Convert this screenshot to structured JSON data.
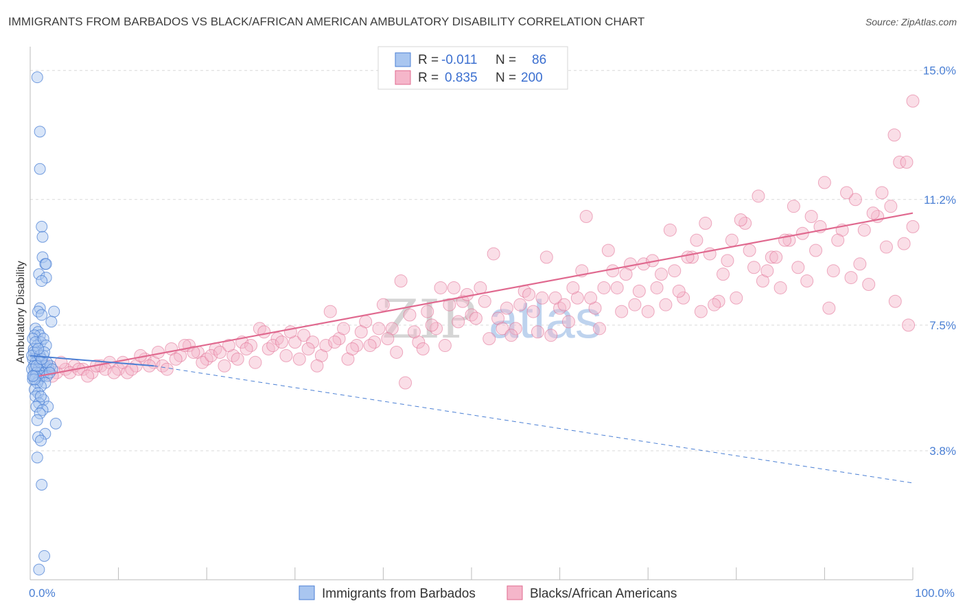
{
  "title": "IMMIGRANTS FROM BARBADOS VS BLACK/AFRICAN AMERICAN AMBULATORY DISABILITY CORRELATION CHART",
  "source": "Source: ZipAtlas.com",
  "watermark": {
    "zip": "ZIP",
    "atlas": "atlas"
  },
  "colors": {
    "blue": "#4a7fd4",
    "blue_fill": "#a9c6f0",
    "pink": "#e0698f",
    "pink_fill": "#f5b6ca",
    "grid": "#d9d9d9",
    "axis": "#bbbbbb",
    "tick_text": "#4a7fd4"
  },
  "chart_data": {
    "type": "scatter",
    "xlabel": "",
    "ylabel": "Ambulatory Disability",
    "xlim": [
      0,
      100
    ],
    "ylim": [
      0,
      15.5
    ],
    "x_tick_labels": [
      {
        "value": 0,
        "label": "0.0%"
      },
      {
        "value": 100,
        "label": "100.0%"
      }
    ],
    "y_tick_labels": [
      {
        "value": 3.8,
        "label": "3.8%"
      },
      {
        "value": 7.5,
        "label": "7.5%"
      },
      {
        "value": 11.2,
        "label": "11.2%"
      },
      {
        "value": 15.0,
        "label": "15.0%"
      }
    ],
    "grid": true,
    "legend_position": "top-center",
    "legend": [
      {
        "r_label": "R =",
        "r": "-0.011",
        "n_label": "N =",
        "n": "86"
      },
      {
        "r_label": "R =",
        "r": "0.835",
        "n_label": "N =",
        "n": "200"
      }
    ],
    "series": [
      {
        "name": "Immigrants from Barbados",
        "color": "#4a7fd4",
        "trend": {
          "x": [
            0,
            14
          ],
          "y": [
            6.6,
            6.3
          ],
          "extended_to": {
            "x": 100,
            "y": 2.85
          }
        },
        "points": [
          [
            0.8,
            14.8
          ],
          [
            1.1,
            13.2
          ],
          [
            1.1,
            12.1
          ],
          [
            1.3,
            10.4
          ],
          [
            1.4,
            10.1
          ],
          [
            1.4,
            9.5
          ],
          [
            1.7,
            9.3
          ],
          [
            1.8,
            9.3
          ],
          [
            1.0,
            9.0
          ],
          [
            1.8,
            8.9
          ],
          [
            1.3,
            8.8
          ],
          [
            2.7,
            7.9
          ],
          [
            1.1,
            8.0
          ],
          [
            0.9,
            7.9
          ],
          [
            1.3,
            7.8
          ],
          [
            2.4,
            7.6
          ],
          [
            0.6,
            7.4
          ],
          [
            0.9,
            7.3
          ],
          [
            1.1,
            7.2
          ],
          [
            0.5,
            7.2
          ],
          [
            0.3,
            7.1
          ],
          [
            1.2,
            7.0
          ],
          [
            0.8,
            6.9
          ],
          [
            0.4,
            6.8
          ],
          [
            0.7,
            6.7
          ],
          [
            1.5,
            6.6
          ],
          [
            0.9,
            6.5
          ],
          [
            0.3,
            6.5
          ],
          [
            1.3,
            6.4
          ],
          [
            0.6,
            6.4
          ],
          [
            1.8,
            6.3
          ],
          [
            0.4,
            6.3
          ],
          [
            1.0,
            6.3
          ],
          [
            1.6,
            6.3
          ],
          [
            2.1,
            6.2
          ],
          [
            0.5,
            6.2
          ],
          [
            1.3,
            6.2
          ],
          [
            0.9,
            6.2
          ],
          [
            0.2,
            6.2
          ],
          [
            1.6,
            6.1
          ],
          [
            2.3,
            6.3
          ],
          [
            1.1,
            6.1
          ],
          [
            0.7,
            6.1
          ],
          [
            0.4,
            6.0
          ],
          [
            1.4,
            6.0
          ],
          [
            1.9,
            6.0
          ],
          [
            0.6,
            6.0
          ],
          [
            1.0,
            5.9
          ],
          [
            0.3,
            5.9
          ],
          [
            1.7,
            5.8
          ],
          [
            0.8,
            5.8
          ],
          [
            1.2,
            5.7
          ],
          [
            0.5,
            5.6
          ],
          [
            0.9,
            5.5
          ],
          [
            0.6,
            5.4
          ],
          [
            1.5,
            5.3
          ],
          [
            1.0,
            5.2
          ],
          [
            0.7,
            5.1
          ],
          [
            2.0,
            5.1
          ],
          [
            1.4,
            5.0
          ],
          [
            1.1,
            4.9
          ],
          [
            0.8,
            4.7
          ],
          [
            2.9,
            4.6
          ],
          [
            1.7,
            4.3
          ],
          [
            0.9,
            4.2
          ],
          [
            1.2,
            4.1
          ],
          [
            0.8,
            3.6
          ],
          [
            1.3,
            2.8
          ],
          [
            1.6,
            0.7
          ],
          [
            1.0,
            0.3
          ],
          [
            0.4,
            6.7
          ],
          [
            1.9,
            6.4
          ],
          [
            0.6,
            7.0
          ],
          [
            1.5,
            7.1
          ],
          [
            0.2,
            6.6
          ],
          [
            2.5,
            6.2
          ],
          [
            1.1,
            6.6
          ],
          [
            0.7,
            6.3
          ],
          [
            1.8,
            6.9
          ],
          [
            0.5,
            5.9
          ],
          [
            1.3,
            6.5
          ],
          [
            0.3,
            6.0
          ],
          [
            2.2,
            6.1
          ],
          [
            1.6,
            6.7
          ],
          [
            0.9,
            6.8
          ],
          [
            1.2,
            5.4
          ]
        ]
      },
      {
        "name": "Blacks/African Americans",
        "color": "#e0698f",
        "trend": {
          "x": [
            1,
            100
          ],
          "y": [
            6.0,
            10.8
          ]
        },
        "points": [
          [
            2.0,
            6.3
          ],
          [
            3.0,
            6.1
          ],
          [
            4.0,
            6.2
          ],
          [
            5.0,
            6.3
          ],
          [
            6.0,
            6.2
          ],
          [
            7.0,
            6.1
          ],
          [
            8.0,
            6.3
          ],
          [
            9.0,
            6.4
          ],
          [
            10.0,
            6.2
          ],
          [
            11.0,
            6.1
          ],
          [
            12.0,
            6.3
          ],
          [
            13.0,
            6.5
          ],
          [
            14.0,
            6.4
          ],
          [
            15.0,
            6.3
          ],
          [
            16.0,
            6.8
          ],
          [
            17.0,
            6.6
          ],
          [
            18.0,
            6.9
          ],
          [
            19.0,
            6.7
          ],
          [
            20.0,
            6.5
          ],
          [
            21.0,
            6.8
          ],
          [
            22.0,
            6.3
          ],
          [
            23.0,
            6.6
          ],
          [
            24.0,
            7.0
          ],
          [
            25.0,
            6.9
          ],
          [
            26.0,
            7.4
          ],
          [
            27.0,
            6.8
          ],
          [
            28.0,
            7.1
          ],
          [
            29.0,
            6.6
          ],
          [
            30.0,
            7.0
          ],
          [
            31.0,
            7.2
          ],
          [
            32.0,
            7.0
          ],
          [
            33.0,
            6.6
          ],
          [
            34.0,
            7.9
          ],
          [
            35.0,
            7.1
          ],
          [
            36.0,
            6.5
          ],
          [
            37.0,
            6.9
          ],
          [
            38.0,
            7.6
          ],
          [
            39.0,
            7.0
          ],
          [
            40.0,
            8.1
          ],
          [
            41.0,
            7.4
          ],
          [
            42.0,
            8.8
          ],
          [
            43.0,
            7.8
          ],
          [
            44.0,
            7.0
          ],
          [
            45.0,
            7.9
          ],
          [
            46.0,
            7.4
          ],
          [
            47.0,
            6.9
          ],
          [
            48.0,
            8.6
          ],
          [
            49.0,
            8.2
          ],
          [
            50.0,
            7.8
          ],
          [
            51.0,
            8.6
          ],
          [
            52.0,
            7.1
          ],
          [
            53.0,
            7.7
          ],
          [
            54.0,
            8.0
          ],
          [
            55.0,
            7.4
          ],
          [
            56.0,
            8.5
          ],
          [
            57.0,
            7.9
          ],
          [
            58.0,
            8.3
          ],
          [
            59.0,
            7.2
          ],
          [
            60.0,
            8.0
          ],
          [
            61.0,
            7.6
          ],
          [
            62.0,
            8.3
          ],
          [
            63.0,
            10.7
          ],
          [
            64.0,
            8.0
          ],
          [
            65.0,
            8.6
          ],
          [
            66.0,
            9.1
          ],
          [
            67.0,
            7.9
          ],
          [
            68.0,
            9.3
          ],
          [
            69.0,
            8.5
          ],
          [
            70.0,
            7.9
          ],
          [
            71.0,
            8.6
          ],
          [
            72.0,
            8.1
          ],
          [
            73.0,
            9.1
          ],
          [
            74.0,
            8.3
          ],
          [
            75.0,
            9.5
          ],
          [
            76.0,
            7.9
          ],
          [
            77.0,
            9.6
          ],
          [
            78.0,
            8.2
          ],
          [
            79.0,
            9.4
          ],
          [
            80.0,
            8.3
          ],
          [
            81.0,
            10.5
          ],
          [
            82.0,
            9.2
          ],
          [
            83.0,
            8.8
          ],
          [
            84.0,
            9.5
          ],
          [
            85.0,
            8.6
          ],
          [
            86.0,
            10.0
          ],
          [
            87.0,
            9.2
          ],
          [
            88.0,
            8.8
          ],
          [
            89.0,
            9.7
          ],
          [
            90.0,
            11.7
          ],
          [
            91.0,
            9.1
          ],
          [
            92.0,
            10.3
          ],
          [
            93.0,
            8.9
          ],
          [
            94.0,
            9.3
          ],
          [
            95.0,
            8.7
          ],
          [
            96.0,
            10.7
          ],
          [
            97.0,
            9.8
          ],
          [
            98.0,
            8.2
          ],
          [
            99.0,
            9.9
          ],
          [
            100.0,
            10.4
          ],
          [
            93.5,
            11.2
          ],
          [
            2.5,
            6.0
          ],
          [
            3.5,
            6.4
          ],
          [
            4.5,
            6.1
          ],
          [
            5.5,
            6.2
          ],
          [
            6.5,
            6.0
          ],
          [
            7.5,
            6.3
          ],
          [
            8.5,
            6.2
          ],
          [
            9.5,
            6.1
          ],
          [
            10.5,
            6.4
          ],
          [
            11.5,
            6.2
          ],
          [
            12.5,
            6.6
          ],
          [
            13.5,
            6.3
          ],
          [
            14.5,
            6.7
          ],
          [
            15.5,
            6.2
          ],
          [
            16.5,
            6.5
          ],
          [
            17.5,
            6.9
          ],
          [
            18.5,
            6.7
          ],
          [
            19.5,
            6.4
          ],
          [
            20.5,
            6.6
          ],
          [
            21.5,
            6.7
          ],
          [
            22.5,
            6.9
          ],
          [
            23.5,
            6.5
          ],
          [
            24.5,
            6.8
          ],
          [
            25.5,
            6.4
          ],
          [
            26.5,
            7.3
          ],
          [
            27.5,
            6.9
          ],
          [
            28.5,
            7.0
          ],
          [
            29.5,
            7.3
          ],
          [
            30.5,
            6.5
          ],
          [
            31.5,
            6.8
          ],
          [
            32.5,
            6.3
          ],
          [
            33.5,
            6.9
          ],
          [
            34.5,
            7.0
          ],
          [
            35.5,
            7.4
          ],
          [
            36.5,
            6.8
          ],
          [
            37.5,
            7.3
          ],
          [
            38.5,
            6.9
          ],
          [
            39.5,
            7.4
          ],
          [
            40.5,
            7.1
          ],
          [
            41.5,
            6.7
          ],
          [
            42.5,
            5.8
          ],
          [
            43.5,
            7.3
          ],
          [
            44.5,
            6.8
          ],
          [
            45.5,
            7.5
          ],
          [
            46.5,
            8.6
          ],
          [
            47.5,
            8.1
          ],
          [
            48.5,
            7.6
          ],
          [
            49.5,
            8.4
          ],
          [
            50.5,
            7.7
          ],
          [
            51.5,
            8.2
          ],
          [
            52.5,
            9.6
          ],
          [
            53.5,
            7.4
          ],
          [
            54.5,
            7.2
          ],
          [
            55.5,
            8.1
          ],
          [
            56.5,
            8.4
          ],
          [
            57.5,
            7.3
          ],
          [
            58.5,
            9.5
          ],
          [
            59.5,
            8.3
          ],
          [
            60.5,
            8.1
          ],
          [
            61.5,
            8.6
          ],
          [
            62.5,
            9.1
          ],
          [
            63.5,
            8.3
          ],
          [
            64.5,
            7.4
          ],
          [
            65.5,
            9.7
          ],
          [
            66.5,
            8.6
          ],
          [
            67.5,
            9.0
          ],
          [
            68.5,
            8.1
          ],
          [
            69.5,
            9.3
          ],
          [
            70.5,
            9.4
          ],
          [
            71.5,
            9.0
          ],
          [
            72.5,
            10.3
          ],
          [
            73.5,
            8.5
          ],
          [
            74.5,
            9.5
          ],
          [
            75.5,
            10.0
          ],
          [
            76.5,
            10.5
          ],
          [
            77.5,
            8.1
          ],
          [
            78.5,
            9.0
          ],
          [
            79.5,
            10.0
          ],
          [
            80.5,
            10.6
          ],
          [
            81.5,
            9.7
          ],
          [
            82.5,
            11.3
          ],
          [
            83.5,
            9.1
          ],
          [
            84.5,
            9.5
          ],
          [
            85.5,
            10.0
          ],
          [
            86.5,
            11.0
          ],
          [
            87.5,
            10.2
          ],
          [
            88.5,
            10.7
          ],
          [
            89.5,
            10.4
          ],
          [
            90.5,
            8.0
          ],
          [
            91.5,
            10.0
          ],
          [
            92.5,
            11.4
          ],
          [
            94.5,
            10.3
          ],
          [
            95.5,
            10.8
          ],
          [
            96.5,
            11.4
          ],
          [
            97.5,
            11.0
          ],
          [
            98.5,
            12.3
          ],
          [
            99.5,
            7.5
          ],
          [
            97.9,
            13.1
          ],
          [
            99.3,
            12.3
          ],
          [
            100.0,
            14.1
          ]
        ]
      }
    ]
  },
  "bottom_legend": [
    {
      "label": "Immigrants from Barbados"
    },
    {
      "label": "Blacks/African Americans"
    }
  ]
}
